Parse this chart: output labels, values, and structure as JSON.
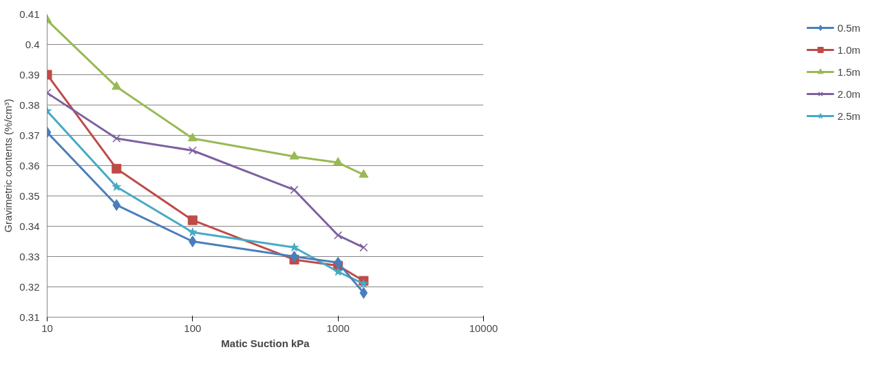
{
  "chart_data": {
    "type": "line",
    "xlabel": "Matic Suction kPa",
    "ylabel": "Gravimetric contents (%/cm³)",
    "x": [
      10,
      30,
      100,
      500,
      1000,
      1500
    ],
    "series": [
      {
        "name": "0.5m",
        "color": "#4a7ebb",
        "marker": "diamond",
        "values": [
          0.371,
          0.347,
          0.335,
          0.33,
          0.328,
          0.318
        ]
      },
      {
        "name": "1.0m",
        "color": "#be4b48",
        "marker": "square",
        "values": [
          0.39,
          0.359,
          0.342,
          0.329,
          0.327,
          0.322
        ]
      },
      {
        "name": "1.5m",
        "color": "#98b954",
        "marker": "triangle",
        "values": [
          0.408,
          0.386,
          0.369,
          0.363,
          0.361,
          0.357
        ]
      },
      {
        "name": "2.0m",
        "color": "#7d60a0",
        "marker": "cross",
        "values": [
          0.384,
          0.369,
          0.365,
          0.352,
          0.337,
          0.333
        ]
      },
      {
        "name": "2.5m",
        "color": "#46aac5",
        "marker": "star",
        "values": [
          0.378,
          0.353,
          0.338,
          0.333,
          0.325,
          0.321
        ]
      }
    ],
    "log": "x",
    "xlim": [
      10,
      10000
    ],
    "xticks": [
      10,
      100,
      1000,
      10000
    ],
    "ylim": [
      0.31,
      0.41
    ],
    "yticks": [
      0.31,
      0.32,
      0.33,
      0.34,
      0.35,
      0.36,
      0.37,
      0.38,
      0.39,
      0.4,
      0.41
    ],
    "grid": "y",
    "legend": "right",
    "line_style": "solid"
  }
}
